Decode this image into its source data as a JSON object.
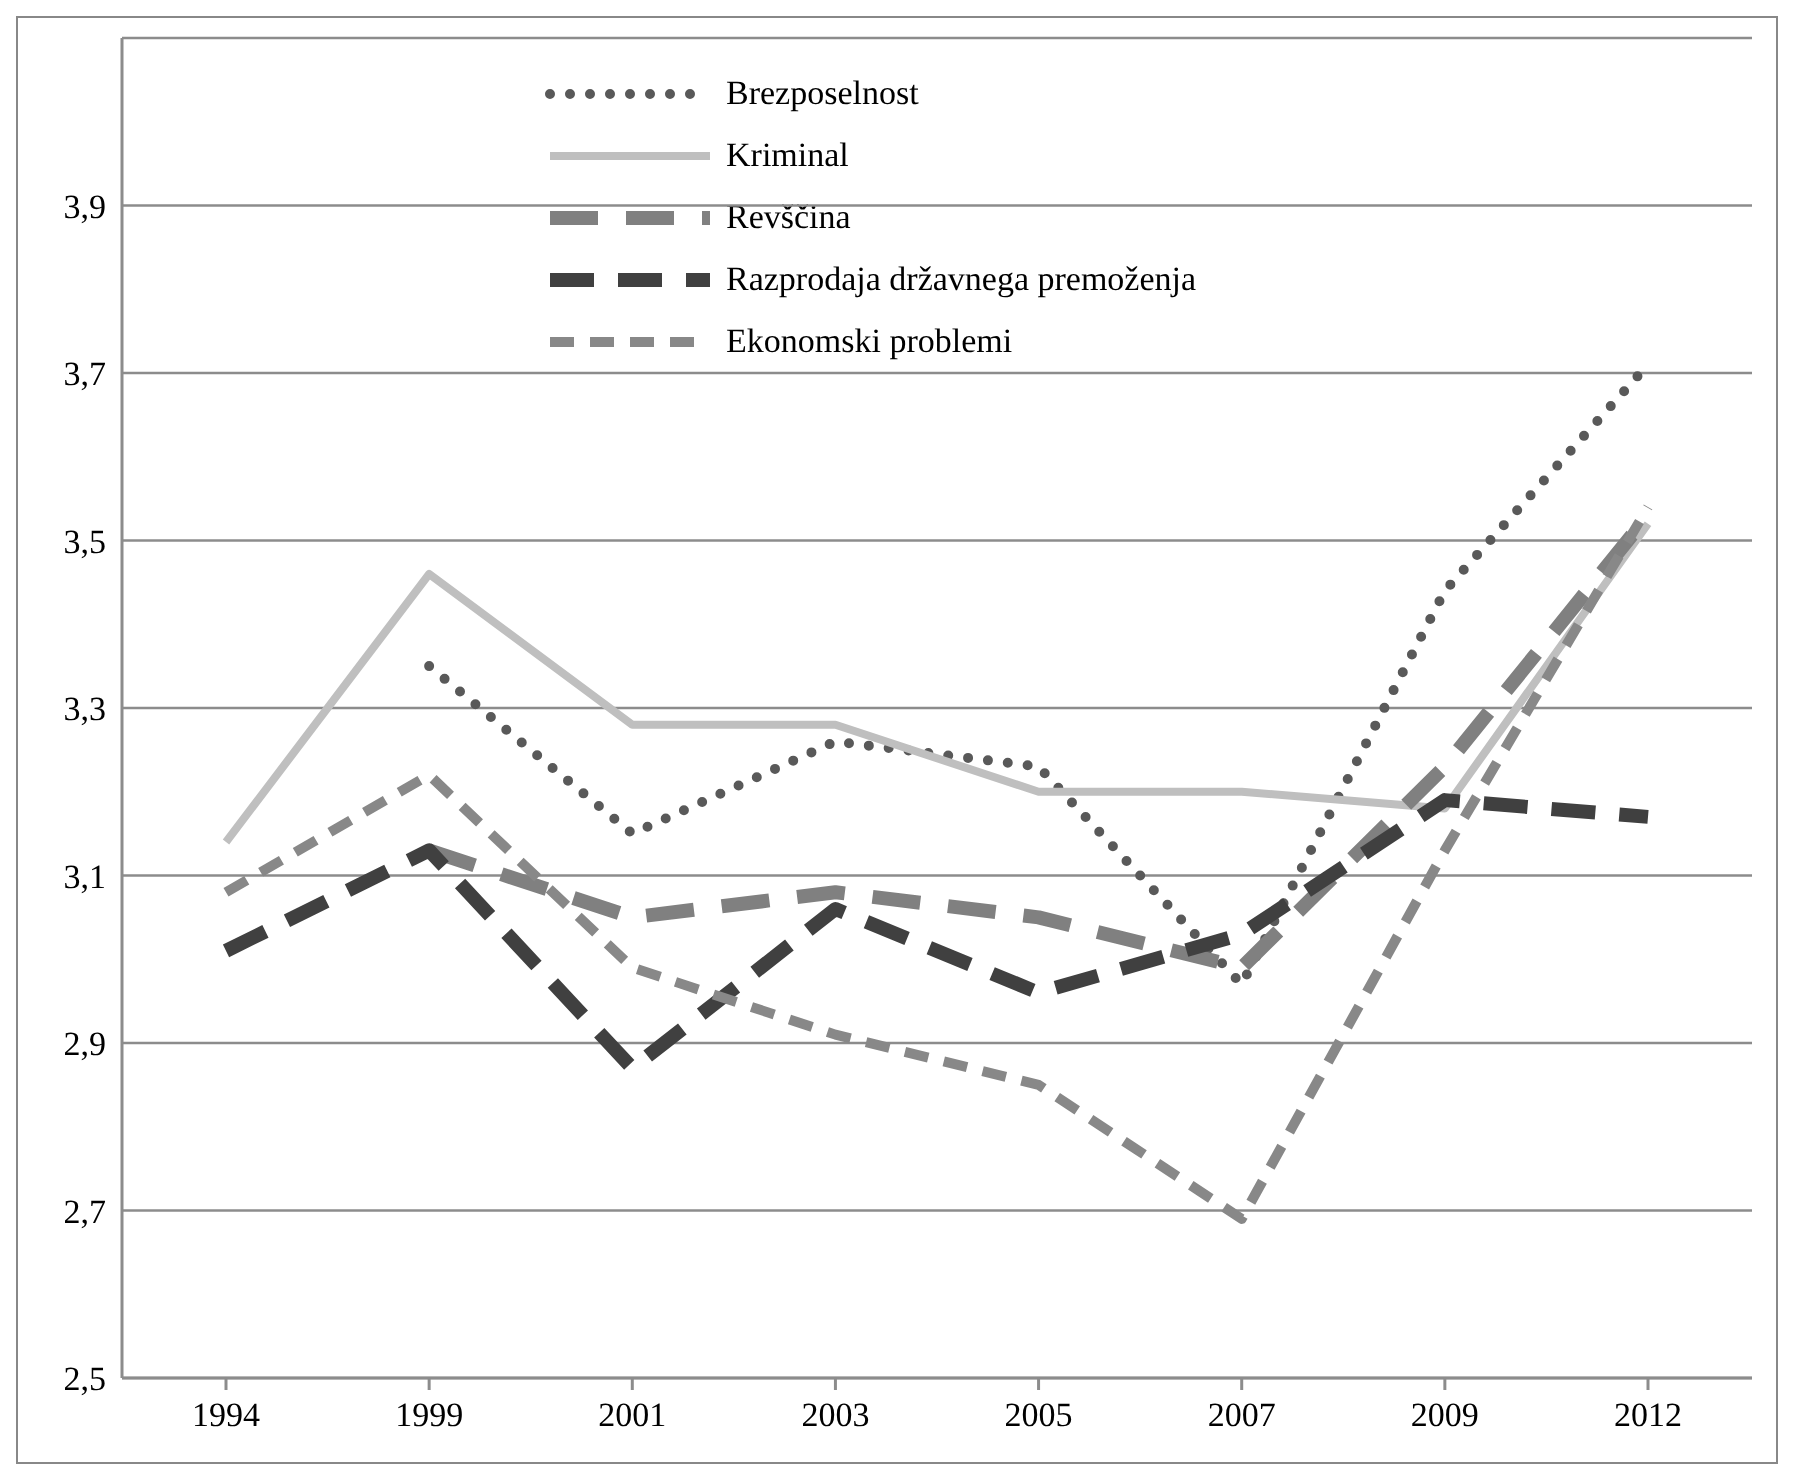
{
  "chart_data": {
    "type": "line",
    "categories": [
      "1994",
      "1999",
      "2001",
      "2003",
      "2005",
      "2007",
      "2009",
      "2012"
    ],
    "series": [
      {
        "name": "Brezposelnost",
        "color": "#595959",
        "line_style": "dotted",
        "values": [
          null,
          3.35,
          3.15,
          3.26,
          3.23,
          2.97,
          3.44,
          3.71
        ]
      },
      {
        "name": "Kriminal",
        "color": "#bfbfbf",
        "line_style": "solid",
        "values": [
          3.14,
          3.46,
          3.28,
          3.28,
          3.2,
          3.2,
          3.18,
          3.52
        ]
      },
      {
        "name": "Revščina",
        "color": "#808080",
        "line_style": "dashed",
        "values": [
          null,
          3.13,
          3.05,
          3.08,
          3.05,
          2.99,
          3.23,
          3.53
        ]
      },
      {
        "name": "Razprodaja državnega premoženja",
        "color": "#404040",
        "line_style": "dashed",
        "values": [
          3.01,
          3.13,
          2.87,
          3.06,
          2.96,
          3.03,
          3.19,
          3.17
        ]
      },
      {
        "name": "Ekonomski problemi",
        "color": "#888888",
        "line_style": "dashed",
        "values": [
          3.08,
          3.22,
          2.99,
          2.91,
          2.85,
          2.69,
          3.13,
          3.54
        ]
      }
    ],
    "ylim": [
      2.5,
      4.1
    ],
    "yticks": [
      {
        "value": 2.5,
        "label": "2,5"
      },
      {
        "value": 2.7,
        "label": "2,7"
      },
      {
        "value": 2.9,
        "label": "2,9"
      },
      {
        "value": 3.1,
        "label": "3,1"
      },
      {
        "value": 3.3,
        "label": "3,3"
      },
      {
        "value": 3.5,
        "label": "3,5"
      },
      {
        "value": 3.7,
        "label": "3,7"
      },
      {
        "value": 3.9,
        "label": "3,9"
      },
      {
        "value": 4.1,
        "label": null
      }
    ],
    "grid": "y",
    "legend": "top",
    "marker": "none"
  }
}
